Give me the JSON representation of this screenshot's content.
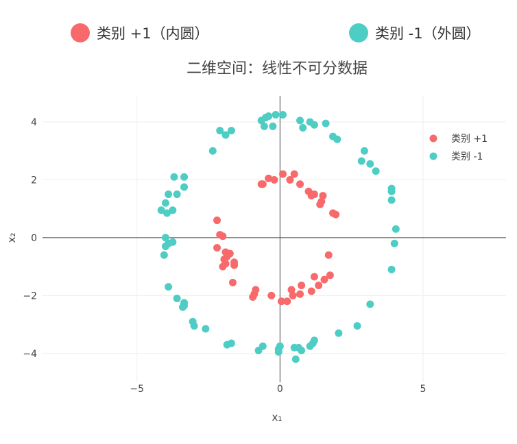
{
  "top_legend": {
    "items": [
      {
        "label": "类别 +1（内圆）",
        "color": "#F8696B"
      },
      {
        "label": "类别 -1（外圆）",
        "color": "#4ECDC4"
      }
    ]
  },
  "chart_data": {
    "type": "scatter",
    "title": "二维空间：线性不可分数据",
    "xlabel": "x₁",
    "ylabel": "x₂",
    "xlim": [
      -8.3,
      7.9
    ],
    "ylim": [
      -5.0,
      4.9
    ],
    "x_ticks": [
      -5,
      0,
      5
    ],
    "x_tick_labels": [
      "−5",
      "0",
      "5"
    ],
    "y_ticks": [
      -4,
      -2,
      0,
      2,
      4
    ],
    "y_tick_labels": [
      "−4",
      "−2",
      "0",
      "2",
      "4"
    ],
    "grid": true,
    "legend_position": "top-right",
    "series": [
      {
        "name": "类别 +1",
        "color": "#F8696B",
        "points": [
          [
            0.1,
            2.2
          ],
          [
            -0.4,
            2.05
          ],
          [
            -0.2,
            2.0
          ],
          [
            0.5,
            2.2
          ],
          [
            0.35,
            2.0
          ],
          [
            -0.6,
            1.85
          ],
          [
            -0.65,
            1.85
          ],
          [
            0.7,
            1.85
          ],
          [
            1.0,
            1.6
          ],
          [
            1.1,
            1.45
          ],
          [
            1.2,
            1.5
          ],
          [
            1.5,
            1.45
          ],
          [
            1.45,
            1.25
          ],
          [
            1.4,
            1.15
          ],
          [
            1.85,
            0.85
          ],
          [
            1.95,
            0.8
          ],
          [
            -2.2,
            0.6
          ],
          [
            -2.1,
            0.1
          ],
          [
            -2.0,
            0.05
          ],
          [
            -2.2,
            -0.35
          ],
          [
            -1.9,
            -0.5
          ],
          [
            -1.75,
            -0.55
          ],
          [
            -1.85,
            -0.65
          ],
          [
            -1.95,
            -0.75
          ],
          [
            -1.9,
            -0.9
          ],
          [
            -2.0,
            -1.0
          ],
          [
            -1.6,
            -0.85
          ],
          [
            -1.6,
            -0.95
          ],
          [
            -1.65,
            -1.55
          ],
          [
            1.7,
            -0.6
          ],
          [
            1.75,
            -1.3
          ],
          [
            1.55,
            -1.45
          ],
          [
            1.2,
            -1.35
          ],
          [
            1.35,
            -1.65
          ],
          [
            0.75,
            -1.65
          ],
          [
            0.4,
            -1.8
          ],
          [
            1.1,
            -1.85
          ],
          [
            0.7,
            -1.95
          ],
          [
            0.45,
            -2.0
          ],
          [
            -0.85,
            -1.8
          ],
          [
            -0.9,
            -1.95
          ],
          [
            -0.95,
            -2.05
          ],
          [
            -0.3,
            -2.0
          ],
          [
            0.05,
            -2.2
          ],
          [
            0.25,
            -2.2
          ]
        ]
      },
      {
        "name": "类别 -1",
        "color": "#4ECDC4",
        "points": [
          [
            -0.65,
            4.05
          ],
          [
            -0.5,
            4.15
          ],
          [
            -0.4,
            4.2
          ],
          [
            -0.15,
            4.25
          ],
          [
            0.1,
            4.25
          ],
          [
            -0.55,
            3.85
          ],
          [
            -0.25,
            3.85
          ],
          [
            0.7,
            4.05
          ],
          [
            0.8,
            3.8
          ],
          [
            1.05,
            4.0
          ],
          [
            1.2,
            3.9
          ],
          [
            1.6,
            3.95
          ],
          [
            -2.1,
            3.7
          ],
          [
            -1.7,
            3.7
          ],
          [
            -1.9,
            3.55
          ],
          [
            -2.35,
            3.0
          ],
          [
            1.85,
            3.5
          ],
          [
            2.0,
            3.4
          ],
          [
            2.95,
            3.0
          ],
          [
            2.85,
            2.65
          ],
          [
            3.15,
            2.55
          ],
          [
            3.35,
            2.3
          ],
          [
            -3.7,
            2.1
          ],
          [
            -3.35,
            2.1
          ],
          [
            -3.35,
            1.75
          ],
          [
            -3.9,
            1.5
          ],
          [
            -3.6,
            1.5
          ],
          [
            3.9,
            1.7
          ],
          [
            3.9,
            1.6
          ],
          [
            3.9,
            1.3
          ],
          [
            -4.0,
            1.2
          ],
          [
            -4.15,
            0.95
          ],
          [
            -3.75,
            0.95
          ],
          [
            -3.95,
            0.85
          ],
          [
            4.05,
            0.3
          ],
          [
            -4.0,
            0.0
          ],
          [
            -3.75,
            -0.15
          ],
          [
            -3.9,
            -0.2
          ],
          [
            -4.0,
            -0.3
          ],
          [
            4.0,
            -0.2
          ],
          [
            -4.05,
            -0.6
          ],
          [
            3.9,
            -1.1
          ],
          [
            -3.9,
            -1.7
          ],
          [
            -3.6,
            -2.1
          ],
          [
            -3.35,
            -2.25
          ],
          [
            -3.35,
            -2.35
          ],
          [
            -3.4,
            -2.4
          ],
          [
            3.15,
            -2.3
          ],
          [
            -3.05,
            -2.9
          ],
          [
            -3.0,
            -3.05
          ],
          [
            -2.6,
            -3.15
          ],
          [
            2.7,
            -3.05
          ],
          [
            2.05,
            -3.3
          ],
          [
            -1.7,
            -3.65
          ],
          [
            -1.85,
            -3.7
          ],
          [
            -0.6,
            -3.75
          ],
          [
            -0.75,
            -3.9
          ],
          [
            0.0,
            -3.75
          ],
          [
            -0.05,
            -3.85
          ],
          [
            -0.05,
            -3.95
          ],
          [
            0.5,
            -3.8
          ],
          [
            0.65,
            -3.8
          ],
          [
            0.75,
            -3.9
          ],
          [
            1.2,
            -3.55
          ],
          [
            1.15,
            -3.65
          ],
          [
            1.05,
            -3.75
          ],
          [
            0.55,
            -4.2
          ]
        ]
      }
    ]
  }
}
